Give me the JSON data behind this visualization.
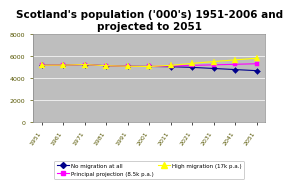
{
  "title": "Scotland's population ('000's) 1951-2006 and\nprojected to 2051",
  "years": [
    1951,
    1961,
    1971,
    1981,
    1991,
    2001,
    2011,
    2021,
    2031,
    2041,
    2051
  ],
  "no_migration": [
    5179,
    5184,
    5236,
    5131,
    5083,
    5062,
    5040,
    4980,
    4880,
    4780,
    4680
  ],
  "principal": [
    5179,
    5184,
    5236,
    5131,
    5083,
    5062,
    5100,
    5160,
    5210,
    5260,
    5310
  ],
  "high_migration": [
    5179,
    5184,
    5236,
    5131,
    5083,
    5062,
    5160,
    5340,
    5510,
    5660,
    5810
  ],
  "ylim": [
    0,
    8000
  ],
  "yticks": [
    0,
    2000,
    4000,
    6000,
    8000
  ],
  "legend_labels": [
    "No migration at all",
    "Principal projection (8.5k p.a.)",
    "High migration (17k p.a.)"
  ],
  "line_colors": [
    "#00008B",
    "#FF00FF",
    "#FFFF00"
  ],
  "line_markers": [
    "D",
    "s",
    "^"
  ],
  "marker_sizes": [
    3,
    3,
    4
  ],
  "fig_bg_color": "#FFFFFF",
  "plot_bg_color": "#BEBEBE",
  "title_fontsize": 7.5,
  "tick_fontsize": 4.5
}
